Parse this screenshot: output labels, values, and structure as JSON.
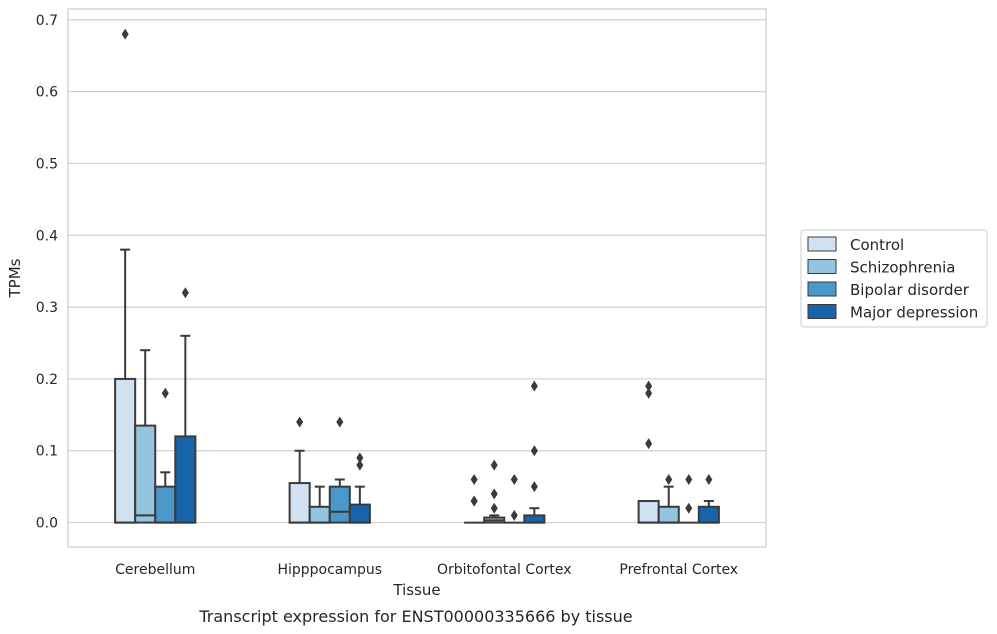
{
  "chart_data": {
    "type": "box",
    "xlabel": "Tissue",
    "ylabel": "TPMs",
    "caption": "Transcript expression for ENST00000335666 by tissue",
    "ylim": [
      -0.034,
      0.715
    ],
    "yticks": [
      0.0,
      0.1,
      0.2,
      0.3,
      0.4,
      0.5,
      0.6,
      0.7
    ],
    "ytick_labels": [
      "0.0",
      "0.1",
      "0.2",
      "0.3",
      "0.4",
      "0.5",
      "0.6",
      "0.7"
    ],
    "categories": [
      "Cerebellum",
      "Hipppocampus",
      "Orbitofontal Cortex",
      "Prefrontal Cortex"
    ],
    "grid": "horizontal",
    "legend_position": "right",
    "series": [
      {
        "name": "Control",
        "color": "#d0e1f2",
        "boxes": [
          {
            "q1": 0.0,
            "median": 0.0,
            "q3": 0.2,
            "whislo": 0.0,
            "whishi": 0.38,
            "fliers": [
              0.68
            ]
          },
          {
            "q1": 0.0,
            "median": 0.0,
            "q3": 0.055,
            "whislo": 0.0,
            "whishi": 0.1,
            "fliers": [
              0.14
            ]
          },
          {
            "q1": 0.0,
            "median": 0.0,
            "q3": 0.0,
            "whislo": 0.0,
            "whishi": 0.0,
            "fliers": [
              0.06,
              0.03,
              0.03
            ]
          },
          {
            "q1": 0.0,
            "median": 0.0,
            "q3": 0.03,
            "whislo": 0.0,
            "whishi": 0.03,
            "fliers": [
              0.19,
              0.18,
              0.11
            ]
          }
        ]
      },
      {
        "name": "Schizophrenia",
        "color": "#94c4df",
        "boxes": [
          {
            "q1": 0.0,
            "median": 0.01,
            "q3": 0.135,
            "whislo": 0.0,
            "whishi": 0.24,
            "fliers": []
          },
          {
            "q1": 0.0,
            "median": 0.0,
            "q3": 0.022,
            "whislo": 0.0,
            "whishi": 0.05,
            "fliers": []
          },
          {
            "q1": 0.0,
            "median": 0.003,
            "q3": 0.007,
            "whislo": 0.0,
            "whishi": 0.01,
            "fliers": [
              0.08,
              0.04,
              0.02
            ]
          },
          {
            "q1": 0.0,
            "median": 0.0,
            "q3": 0.022,
            "whislo": 0.0,
            "whishi": 0.05,
            "fliers": [
              0.06
            ]
          }
        ]
      },
      {
        "name": "Bipolar disorder",
        "color": "#4a98c9",
        "boxes": [
          {
            "q1": 0.0,
            "median": 0.0,
            "q3": 0.05,
            "whislo": 0.0,
            "whishi": 0.07,
            "fliers": [
              0.18
            ]
          },
          {
            "q1": 0.0,
            "median": 0.015,
            "q3": 0.05,
            "whislo": 0.0,
            "whishi": 0.06,
            "fliers": [
              0.14
            ]
          },
          {
            "q1": 0.0,
            "median": 0.0,
            "q3": 0.0,
            "whislo": 0.0,
            "whishi": 0.0,
            "fliers": [
              0.06,
              0.01
            ]
          },
          {
            "q1": 0.0,
            "median": 0.0,
            "q3": 0.0,
            "whislo": 0.0,
            "whishi": 0.0,
            "fliers": [
              0.06,
              0.02
            ]
          }
        ]
      },
      {
        "name": "Major depression",
        "color": "#1764ab",
        "boxes": [
          {
            "q1": 0.0,
            "median": 0.0,
            "q3": 0.12,
            "whislo": 0.0,
            "whishi": 0.26,
            "fliers": [
              0.32
            ]
          },
          {
            "q1": 0.0,
            "median": 0.0,
            "q3": 0.025,
            "whislo": 0.0,
            "whishi": 0.05,
            "fliers": [
              0.09,
              0.08
            ]
          },
          {
            "q1": 0.0,
            "median": 0.0,
            "q3": 0.01,
            "whislo": 0.0,
            "whishi": 0.02,
            "fliers": [
              0.19,
              0.1,
              0.05
            ]
          },
          {
            "q1": 0.0,
            "median": 0.0,
            "q3": 0.022,
            "whislo": 0.0,
            "whishi": 0.03,
            "fliers": [
              0.06
            ]
          }
        ]
      }
    ]
  }
}
